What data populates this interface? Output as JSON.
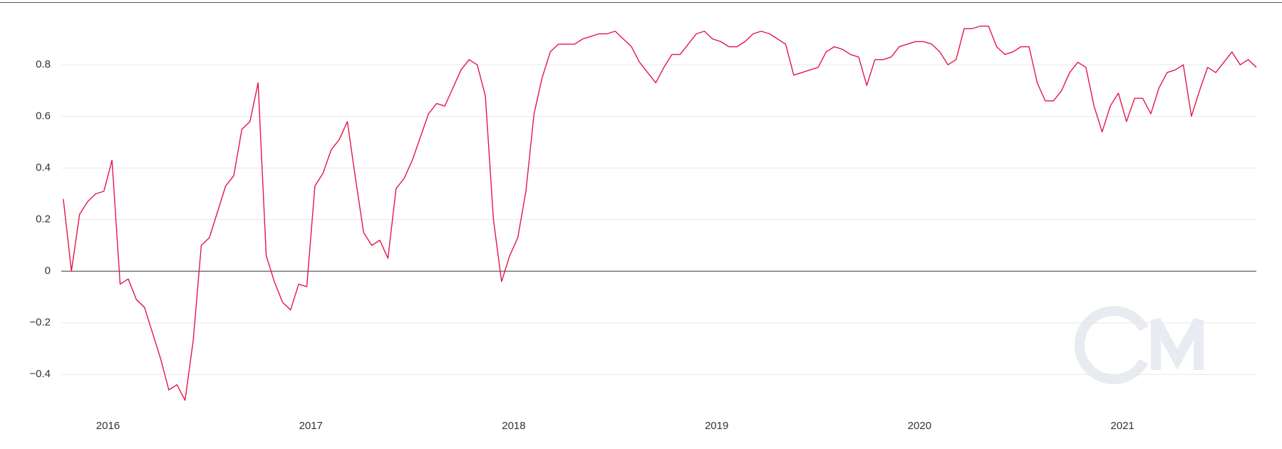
{
  "chart_data": {
    "type": "line",
    "x": [
      2015.78,
      2015.82,
      2015.86,
      2015.9,
      2015.94,
      2015.98,
      2016.02,
      2016.06,
      2016.1,
      2016.14,
      2016.18,
      2016.22,
      2016.26,
      2016.3,
      2016.34,
      2016.38,
      2016.42,
      2016.46,
      2016.5,
      2016.54,
      2016.58,
      2016.62,
      2016.66,
      2016.7,
      2016.74,
      2016.78,
      2016.82,
      2016.86,
      2016.9,
      2016.94,
      2016.98,
      2017.02,
      2017.06,
      2017.1,
      2017.14,
      2017.18,
      2017.22,
      2017.26,
      2017.3,
      2017.34,
      2017.38,
      2017.42,
      2017.46,
      2017.5,
      2017.54,
      2017.58,
      2017.62,
      2017.66,
      2017.7,
      2017.74,
      2017.78,
      2017.82,
      2017.86,
      2017.9,
      2017.94,
      2017.98,
      2018.02,
      2018.06,
      2018.1,
      2018.14,
      2018.18,
      2018.22,
      2018.26,
      2018.3,
      2018.34,
      2018.38,
      2018.42,
      2018.46,
      2018.5,
      2018.54,
      2018.58,
      2018.62,
      2018.66,
      2018.7,
      2018.74,
      2018.78,
      2018.82,
      2018.86,
      2018.9,
      2018.94,
      2018.98,
      2019.02,
      2019.06,
      2019.1,
      2019.14,
      2019.18,
      2019.22,
      2019.26,
      2019.3,
      2019.34,
      2019.38,
      2019.42,
      2019.46,
      2019.5,
      2019.54,
      2019.58,
      2019.62,
      2019.66,
      2019.7,
      2019.74,
      2019.78,
      2019.82,
      2019.86,
      2019.9,
      2019.94,
      2019.98,
      2020.02,
      2020.06,
      2020.1,
      2020.14,
      2020.18,
      2020.22,
      2020.26,
      2020.3,
      2020.34,
      2020.38,
      2020.42,
      2020.46,
      2020.5,
      2020.54,
      2020.58,
      2020.62,
      2020.66,
      2020.7,
      2020.74,
      2020.78,
      2020.82,
      2020.86,
      2020.9,
      2020.94,
      2020.98,
      2021.02,
      2021.06,
      2021.1,
      2021.14,
      2021.18,
      2021.22,
      2021.26,
      2021.3,
      2021.34,
      2021.38,
      2021.42,
      2021.46,
      2021.5,
      2021.54,
      2021.58,
      2021.62,
      2021.66
    ],
    "series": [
      {
        "color": "#e3164a",
        "values": [
          0.28,
          0.0,
          0.22,
          0.27,
          0.3,
          0.31,
          0.43,
          -0.05,
          -0.03,
          -0.11,
          -0.14,
          -0.24,
          -0.34,
          -0.46,
          -0.44,
          -0.5,
          -0.27,
          0.1,
          0.13,
          0.23,
          0.33,
          0.37,
          0.55,
          0.58,
          0.73,
          0.06,
          -0.04,
          -0.12,
          -0.15,
          -0.05,
          -0.06,
          0.33,
          0.38,
          0.47,
          0.51,
          0.58,
          0.36,
          0.15,
          0.1,
          0.12,
          0.05,
          0.32,
          0.36,
          0.43,
          0.52,
          0.61,
          0.65,
          0.64,
          0.71,
          0.78,
          0.82,
          0.8,
          0.68,
          0.2,
          -0.04,
          0.06,
          0.13,
          0.31,
          0.61,
          0.75,
          0.85,
          0.88,
          0.88,
          0.88,
          0.9,
          0.91,
          0.92,
          0.92,
          0.93,
          0.9,
          0.87,
          0.81,
          0.77,
          0.73,
          0.79,
          0.84,
          0.84,
          0.88,
          0.92,
          0.93,
          0.9,
          0.89,
          0.87,
          0.87,
          0.89,
          0.92,
          0.93,
          0.92,
          0.9,
          0.88,
          0.76,
          0.77,
          0.78,
          0.79,
          0.85,
          0.87,
          0.86,
          0.84,
          0.83,
          0.72,
          0.82,
          0.82,
          0.83,
          0.87,
          0.88,
          0.89,
          0.89,
          0.88,
          0.85,
          0.8,
          0.82,
          0.94,
          0.94,
          0.95,
          0.95,
          0.87,
          0.84,
          0.85,
          0.87,
          0.87,
          0.73,
          0.66,
          0.66,
          0.7,
          0.77,
          0.81,
          0.79,
          0.64,
          0.54,
          0.64,
          0.69,
          0.58,
          0.67,
          0.67,
          0.61,
          0.71,
          0.77,
          0.78,
          0.8,
          0.6,
          0.7,
          0.79,
          0.77,
          0.81,
          0.85,
          0.8,
          0.82,
          0.79
        ]
      }
    ],
    "xlim": [
      2015.77,
      2021.66
    ],
    "xticks": [
      2016,
      2017,
      2018,
      2019,
      2020,
      2021
    ],
    "ylim": [
      -0.54,
      1.04
    ],
    "yticks": [
      {
        "value": -0.4,
        "label": "−0.4"
      },
      {
        "value": -0.2,
        "label": "−0.2"
      },
      0,
      0.2,
      0.4,
      0.6,
      0.8
    ],
    "grid": true
  }
}
